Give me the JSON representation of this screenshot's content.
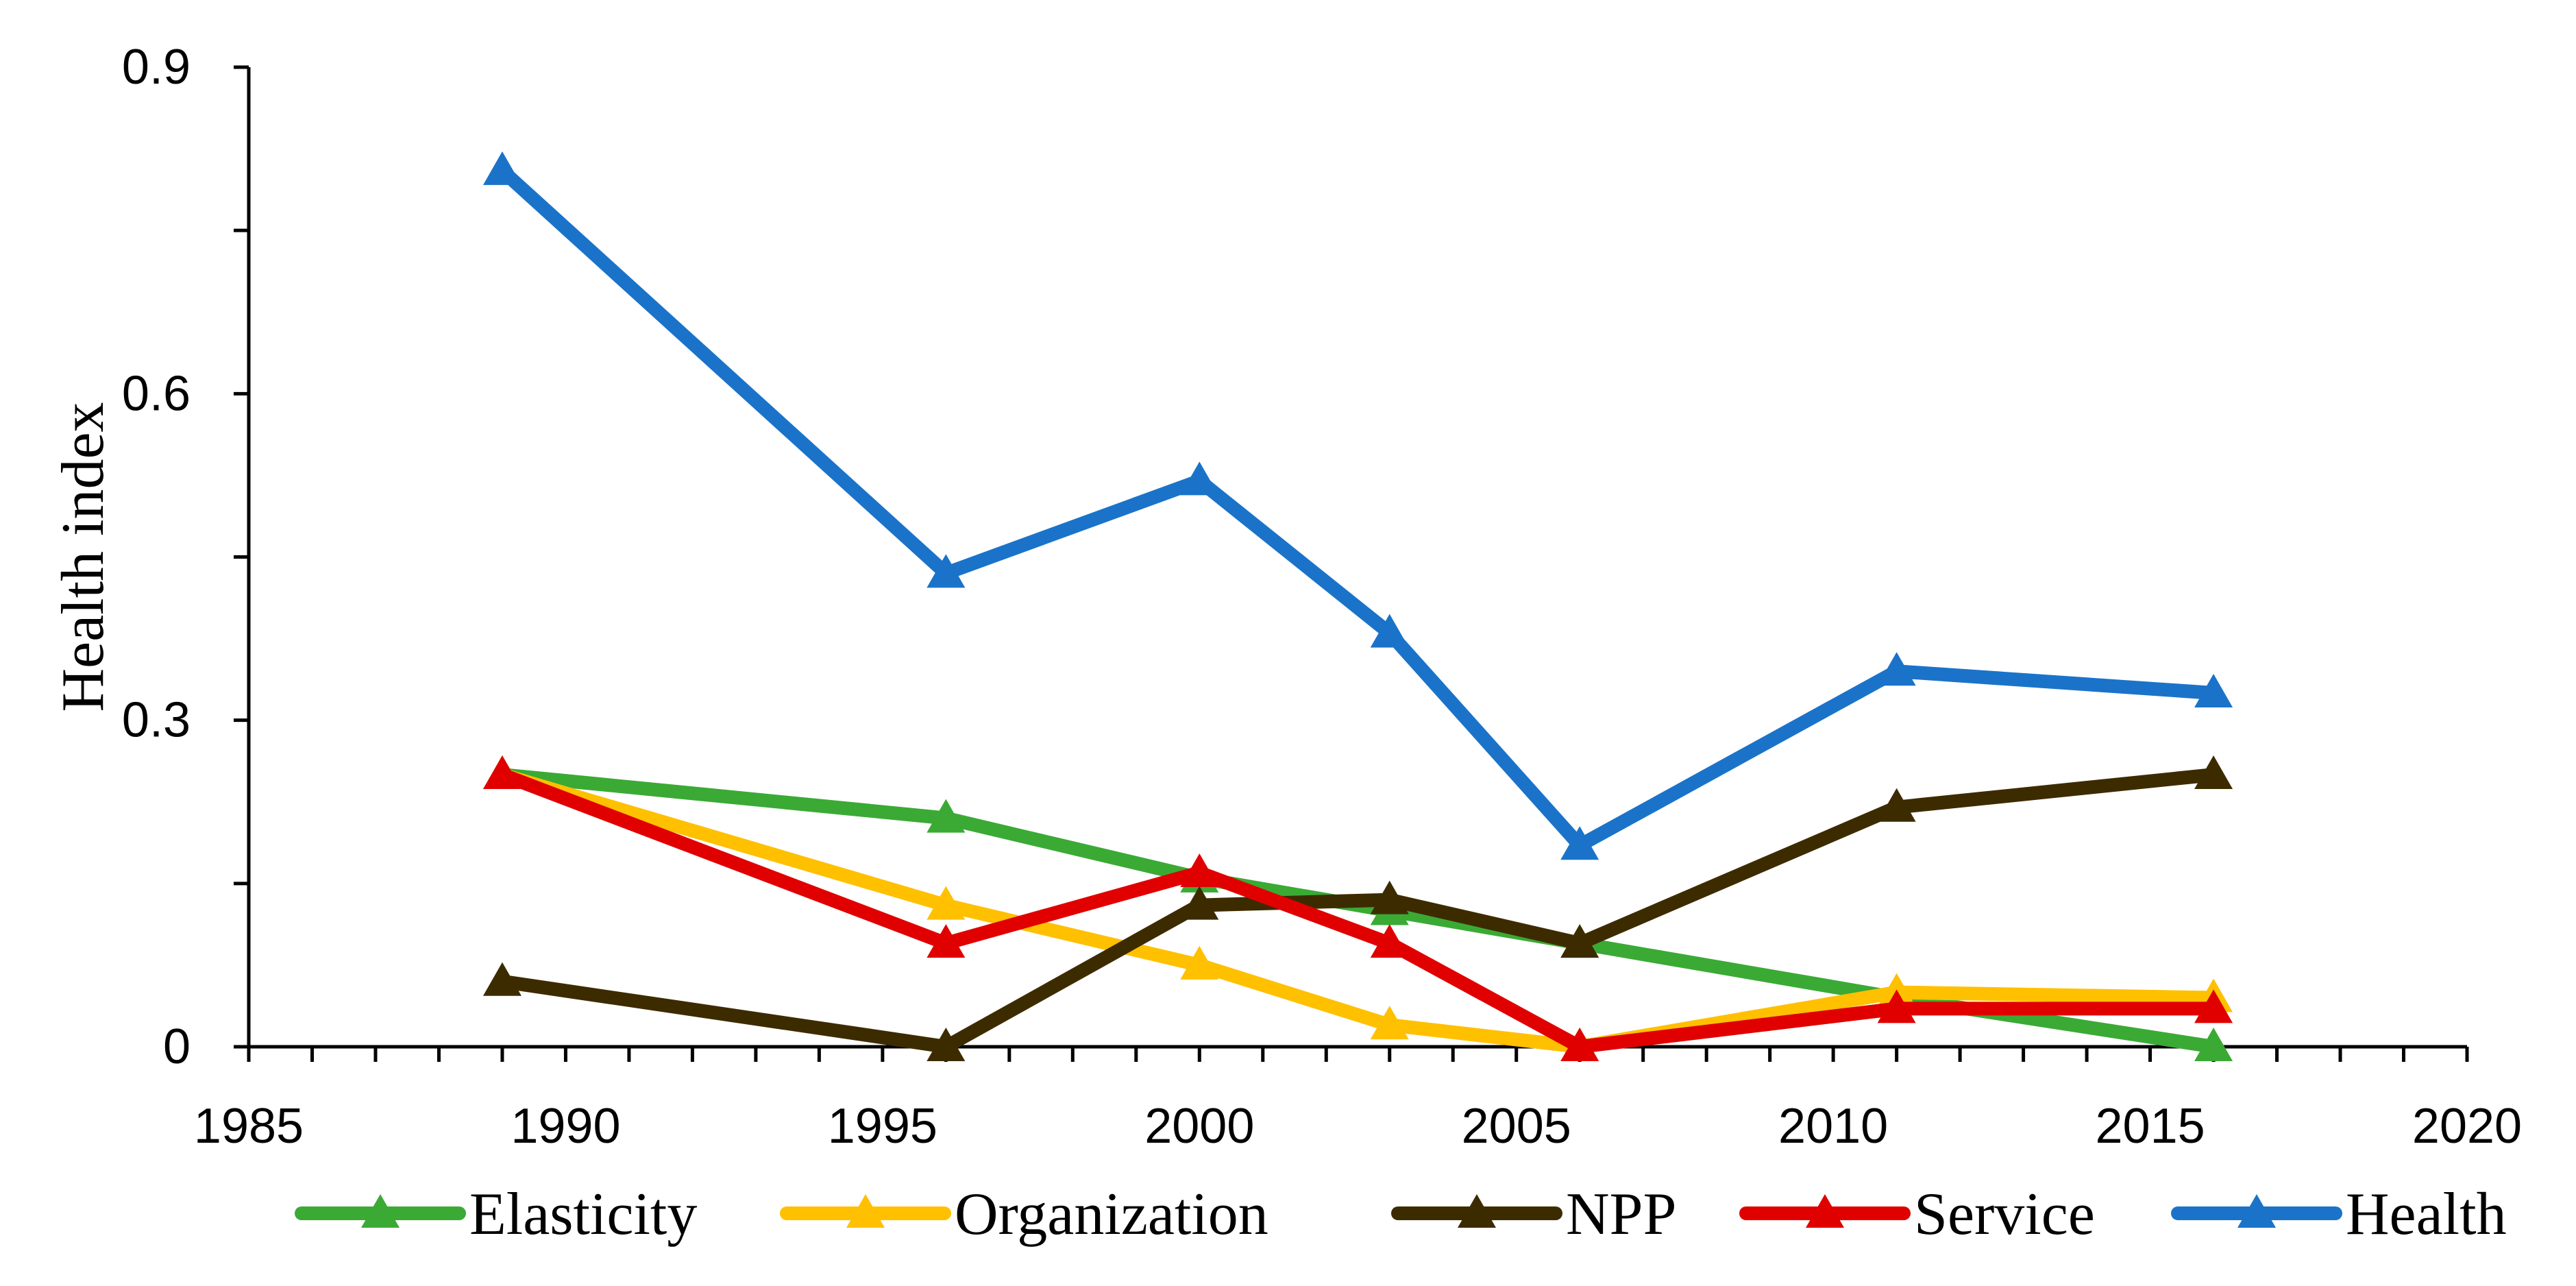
{
  "chart_data": {
    "type": "line",
    "title": "",
    "xlabel": "",
    "ylabel": "Health index",
    "xlim": [
      1985,
      2020
    ],
    "ylim": [
      0,
      0.9
    ],
    "x_ticks": [
      1985,
      1990,
      1995,
      2000,
      2005,
      2010,
      2015,
      2020
    ],
    "x_tick_labels": [
      "1985",
      "1990",
      "1995",
      "2000",
      "2005",
      "2010",
      "2015",
      "2020"
    ],
    "y_ticks": [
      0,
      0.3,
      0.6,
      0.9
    ],
    "y_tick_labels": [
      "0",
      "0.3",
      "0.6",
      "0.9"
    ],
    "x_minor_step": 1,
    "y_minor_step": 0.15,
    "grid": false,
    "legend_position": "bottom",
    "x": [
      1989,
      1996,
      2000,
      2003,
      2006,
      2011,
      2016
    ],
    "series": [
      {
        "name": "Elasticity",
        "color": "#3aaa35",
        "values": [
          0.25,
          0.21,
          0.155,
          0.125,
          0.095,
          0.045,
          0.0
        ]
      },
      {
        "name": "Organization",
        "color": "#ffc000",
        "values": [
          0.25,
          0.13,
          0.075,
          0.02,
          0.0,
          0.05,
          0.045
        ]
      },
      {
        "name": "NPP",
        "color": "#3d2b00",
        "values": [
          0.06,
          0.0,
          0.13,
          0.135,
          0.095,
          0.22,
          0.25
        ]
      },
      {
        "name": "Service",
        "color": "#e00000",
        "values": [
          0.25,
          0.095,
          0.16,
          0.095,
          0.0,
          0.035,
          0.035
        ]
      },
      {
        "name": "Health",
        "color": "#1a73c9",
        "values": [
          0.805,
          0.435,
          0.52,
          0.38,
          0.185,
          0.345,
          0.325
        ]
      }
    ]
  }
}
